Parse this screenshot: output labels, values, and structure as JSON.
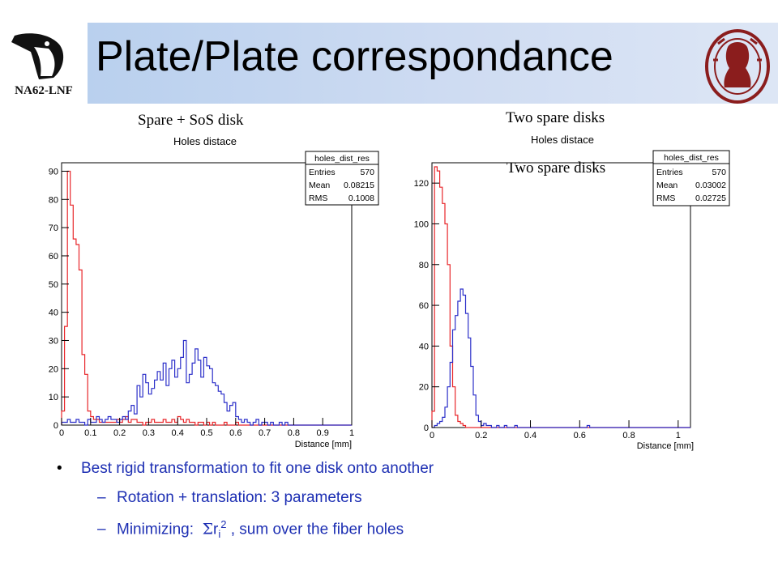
{
  "slide": {
    "title": "Plate/Plate correspondance",
    "logo_left_text": "NA62-LNF",
    "caption_left": "Spare + SoS disk",
    "caption_right_top": "Two spare disks",
    "caption_right_mid": "Two spare disks"
  },
  "bullets": {
    "b1": "Best rigid transformation to fit one disk onto another",
    "b2": "Rotation + translation: 3 parameters",
    "b3_pre": "Minimizing:  ",
    "b3_sigma": "Σ",
    "b3_r": "r",
    "b3_sub": "i",
    "b3_sup": "2",
    "b3_post": " , sum over the fiber holes"
  },
  "colors": {
    "red": "#e8262a",
    "blue": "#2b2fc9",
    "bullet_text": "#1d2fb3"
  },
  "chart_data": [
    {
      "type": "histogram",
      "title": "Holes distace",
      "xlabel": "Distance [mm]",
      "xlim": [
        0,
        1
      ],
      "ylim": [
        0,
        93
      ],
      "xticks": [
        "0",
        "0.1",
        "0.2",
        "0.3",
        "0.4",
        "0.5",
        "0.6",
        "0.7",
        "0.8",
        "0.9",
        "1"
      ],
      "yticks": [
        "0",
        "10",
        "20",
        "30",
        "40",
        "50",
        "60",
        "70",
        "80",
        "90"
      ],
      "stats": {
        "name": "holes_dist_res",
        "entries_label": "Entries",
        "entries": "570",
        "mean_label": "Mean",
        "mean": "0.08215",
        "rms_label": "RMS",
        "rms": "0.1008"
      },
      "bin_width": 0.01,
      "series": [
        {
          "color": "red",
          "values": [
            5,
            35,
            90,
            78,
            66,
            64,
            55,
            25,
            18,
            5,
            3,
            2,
            2,
            1,
            1,
            1,
            1,
            1,
            1,
            2,
            1,
            2,
            3,
            1,
            2,
            2,
            1,
            1,
            0,
            1,
            1,
            2,
            1,
            1,
            1,
            2,
            1,
            1,
            2,
            1,
            3,
            2,
            1,
            2,
            1,
            1,
            0,
            1,
            1,
            0,
            1,
            0,
            1,
            0,
            0,
            0,
            1,
            0,
            0,
            0,
            1,
            0,
            0,
            0,
            0,
            0,
            0,
            0,
            0,
            0,
            0,
            0,
            0,
            0,
            0,
            0,
            0,
            0,
            0,
            0,
            0,
            0,
            0,
            0,
            0,
            0,
            0,
            0,
            0,
            0,
            0,
            0,
            0,
            0,
            0,
            0,
            0,
            0,
            0,
            0
          ]
        },
        {
          "color": "blue",
          "values": [
            1,
            1,
            2,
            1,
            1,
            2,
            1,
            1,
            0,
            2,
            1,
            1,
            3,
            2,
            1,
            2,
            3,
            2,
            2,
            1,
            2,
            3,
            2,
            5,
            7,
            4,
            14,
            10,
            18,
            15,
            11,
            13,
            16,
            19,
            16,
            22,
            14,
            20,
            23,
            17,
            20,
            24,
            30,
            15,
            18,
            22,
            27,
            23,
            17,
            24,
            21,
            20,
            15,
            14,
            12,
            11,
            8,
            5,
            7,
            8,
            3,
            2,
            1,
            2,
            1,
            0,
            1,
            2,
            0,
            1,
            1,
            0,
            1,
            0,
            0,
            1,
            0,
            1,
            0,
            0,
            0,
            0,
            0,
            0,
            0,
            0,
            0,
            0,
            0,
            0,
            0,
            0,
            0,
            0,
            0,
            0,
            0,
            0,
            0,
            0
          ]
        }
      ]
    },
    {
      "type": "histogram",
      "title": "Holes distace",
      "xlabel": "Distance [mm]",
      "xlim": [
        0,
        1.05
      ],
      "ylim": [
        0,
        130
      ],
      "xticks": [
        "0",
        "0.2",
        "0.4",
        "0.6",
        "0.8",
        "1"
      ],
      "yticks": [
        "0",
        "20",
        "40",
        "60",
        "80",
        "100",
        "120"
      ],
      "stats": {
        "name": "holes_dist_res",
        "entries_label": "Entries",
        "entries": "570",
        "mean_label": "Mean",
        "mean": "0.03002",
        "rms_label": "RMS",
        "rms": "0.02725"
      },
      "bin_width": 0.0105,
      "series": [
        {
          "color": "red",
          "values": [
            8,
            128,
            126,
            118,
            110,
            100,
            80,
            40,
            20,
            6,
            3,
            2,
            1,
            0,
            0,
            0,
            0,
            0,
            0,
            0,
            0,
            0,
            0,
            0,
            0,
            0,
            0,
            0,
            0,
            0,
            0,
            0,
            0,
            0,
            0,
            0,
            0,
            0,
            0,
            0,
            0,
            0,
            0,
            0,
            0,
            0,
            0,
            0,
            0,
            0,
            0,
            0,
            0,
            0,
            0,
            0,
            0,
            0,
            0,
            0,
            0,
            0,
            0,
            0,
            0,
            0,
            0,
            0,
            0,
            0,
            0,
            0,
            0,
            0,
            0,
            0,
            0,
            0,
            0,
            0,
            0,
            0,
            0,
            0,
            0,
            0,
            0,
            0,
            0,
            0,
            0,
            0,
            0,
            0,
            0,
            0,
            0,
            0,
            0,
            0
          ]
        },
        {
          "color": "blue",
          "values": [
            0,
            1,
            2,
            3,
            5,
            10,
            20,
            32,
            48,
            55,
            62,
            68,
            65,
            56,
            44,
            30,
            16,
            6,
            3,
            1,
            2,
            1,
            1,
            0,
            0,
            1,
            0,
            0,
            1,
            0,
            0,
            0,
            1,
            0,
            0,
            0,
            0,
            0,
            0,
            0,
            0,
            0,
            0,
            0,
            0,
            0,
            0,
            0,
            0,
            0,
            0,
            0,
            0,
            0,
            0,
            0,
            0,
            0,
            0,
            0,
            1,
            0,
            0,
            0,
            0,
            0,
            0,
            0,
            0,
            0,
            0,
            0,
            0,
            0,
            0,
            0,
            0,
            0,
            0,
            0,
            0,
            0,
            0,
            0,
            0,
            0,
            0,
            0,
            0,
            0,
            0,
            0,
            0,
            0,
            0,
            0,
            0,
            0,
            0,
            0
          ]
        }
      ]
    }
  ]
}
